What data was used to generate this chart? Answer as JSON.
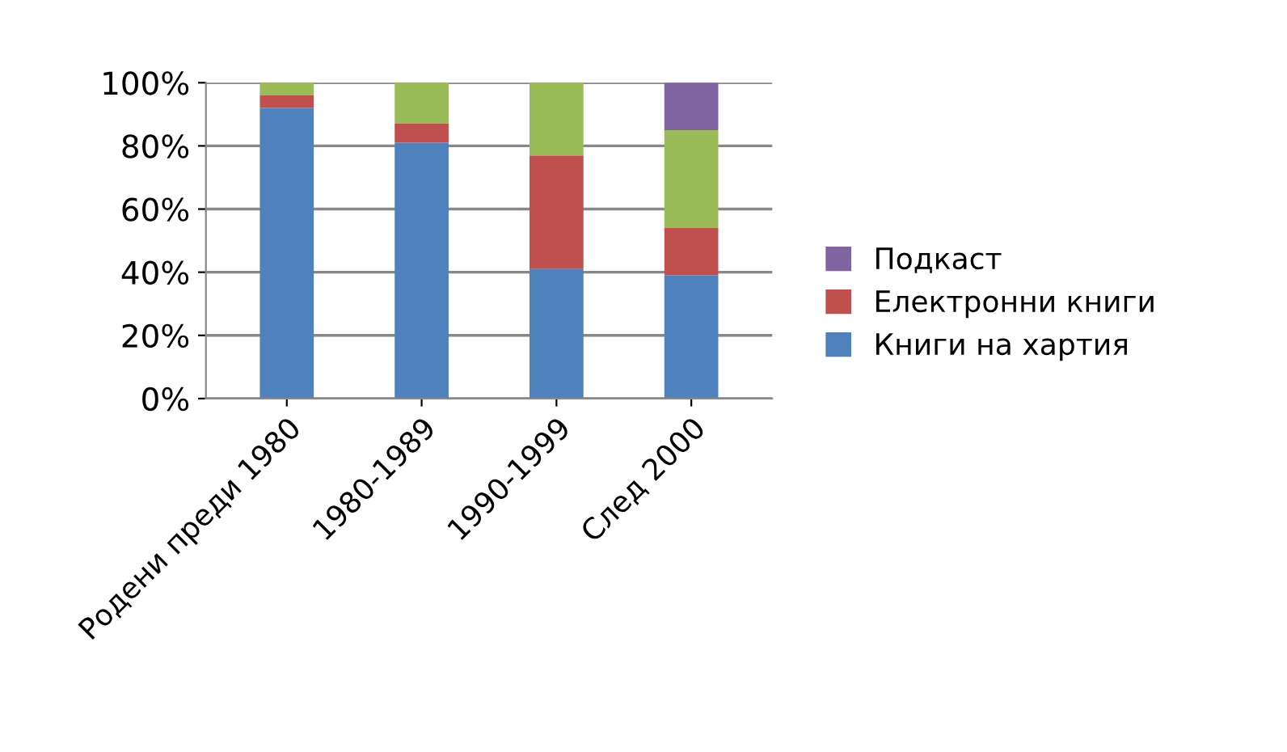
{
  "chart_data": {
    "type": "bar",
    "stacked": true,
    "categories": [
      "Родени преди 1980",
      "1980-1989",
      "1990-1999",
      "След 2000"
    ],
    "series": [
      {
        "name": "Книги на хартия",
        "color": "#4f81bd",
        "values": [
          92,
          81,
          41,
          39
        ]
      },
      {
        "name": "Електронни книги",
        "color": "#c0504d",
        "values": [
          4,
          6,
          36,
          15
        ]
      },
      {
        "color": "#9bbb59",
        "values": [
          4,
          13,
          23,
          31
        ]
      },
      {
        "name": "Подкаст",
        "color": "#8064a2",
        "values": [
          0,
          0,
          0,
          15
        ]
      }
    ],
    "ylim": [
      0,
      100
    ],
    "yticks": [
      {
        "value": 0,
        "label": "0%"
      },
      {
        "value": 20,
        "label": "20%"
      },
      {
        "value": 40,
        "label": "40%"
      },
      {
        "value": 60,
        "label": "60%"
      },
      {
        "value": 80,
        "label": "80%"
      },
      {
        "value": 100,
        "label": "100%"
      }
    ],
    "grid": "y",
    "legend": "right"
  }
}
